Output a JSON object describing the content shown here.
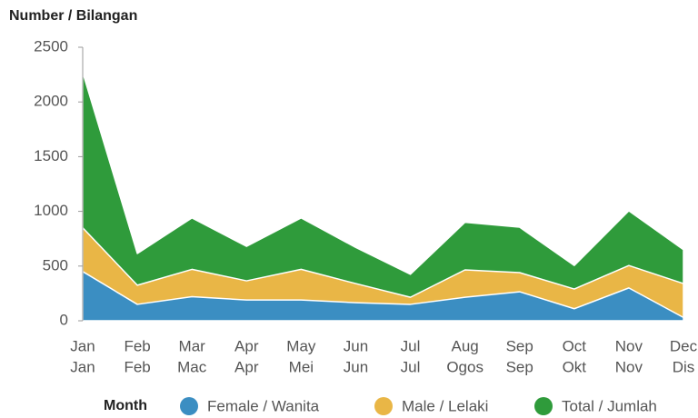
{
  "chart_data": {
    "type": "area",
    "y_label": "Number / Bilangan",
    "x_label": "Month",
    "categories": [
      [
        "Jan",
        "Jan"
      ],
      [
        "Feb",
        "Feb"
      ],
      [
        "Mar",
        "Mac"
      ],
      [
        "Apr",
        "Apr"
      ],
      [
        "May",
        "Mei"
      ],
      [
        "Jun",
        "Jun"
      ],
      [
        "Jul",
        "Jul"
      ],
      [
        "Aug",
        "Ogos"
      ],
      [
        "Sep",
        "Sep"
      ],
      [
        "Oct",
        "Okt"
      ],
      [
        "Nov",
        "Nov"
      ],
      [
        "Dec",
        "Dis"
      ]
    ],
    "series": [
      {
        "name": "Female / Wanita",
        "color": "#3b8ec2",
        "values": [
          450,
          150,
          220,
          190,
          190,
          165,
          150,
          215,
          265,
          110,
          300,
          30
        ]
      },
      {
        "name": "Male / Lelaki",
        "color": "#e9b646",
        "values": [
          850,
          325,
          470,
          365,
          470,
          340,
          215,
          465,
          440,
          290,
          505,
          340
        ]
      },
      {
        "name": "Total / Jumlah",
        "color": "#2f9b3b",
        "values": [
          2270,
          615,
          940,
          680,
          940,
          670,
          425,
          900,
          855,
          505,
          1005,
          650
        ]
      }
    ],
    "ylim": [
      0,
      2500
    ],
    "yticks": [
      0,
      500,
      1000,
      1500,
      2000,
      2500
    ],
    "grid": false
  }
}
